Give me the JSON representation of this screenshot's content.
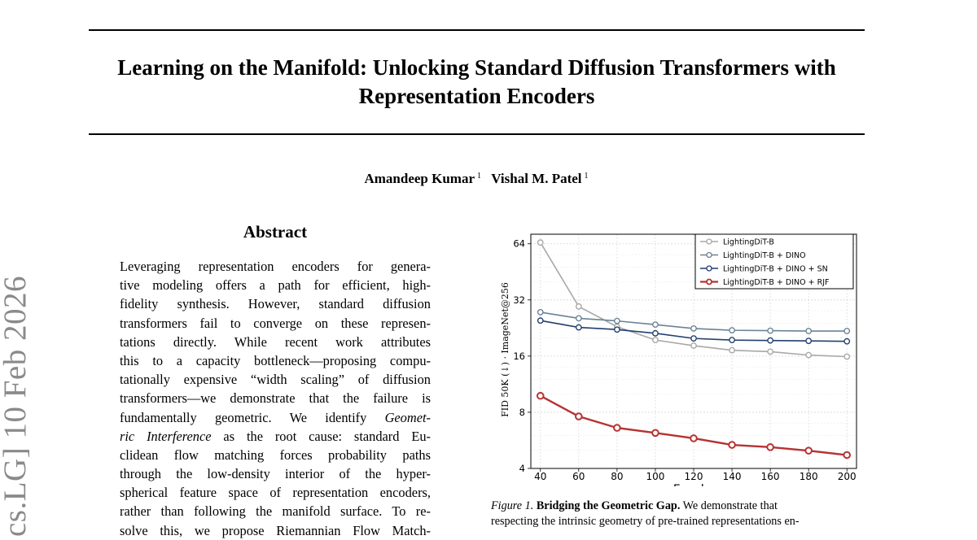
{
  "paper": {
    "title_lines": [
      "Learning on the Manifold: Unlocking Standard Diffusion Transformers with",
      "Representation Encoders"
    ],
    "authors": [
      {
        "name": "Amandeep Kumar",
        "affiliation": "1"
      },
      {
        "name": "Vishal M. Patel",
        "affiliation": "1"
      }
    ],
    "arxiv_stamp": "cs.LG]  10 Feb 2026"
  },
  "abstract": {
    "heading": "Abstract",
    "lines": [
      {
        "text": "Leveraging representation encoders for genera-"
      },
      {
        "text": "tive modeling offers a path for efficient, high-"
      },
      {
        "text": "fidelity synthesis.  However, standard diffusion"
      },
      {
        "text": "transformers fail to converge on these represen-"
      },
      {
        "text": "tations directly.  While recent work attributes"
      },
      {
        "text": "this to a capacity bottleneck—proposing compu-"
      },
      {
        "text": "tationally expensive “width scaling” of diffusion"
      },
      {
        "text": "transformers—we demonstrate that the failure is"
      },
      {
        "text": "fundamentally geometric.  We identify ",
        "em": "Geomet-"
      },
      {
        "em": "ric Interference",
        "text": " as the root cause:  standard Eu-"
      },
      {
        "text": "clidean flow matching forces probability paths"
      },
      {
        "text": "through the low-density interior of the hyper-"
      },
      {
        "text": "spherical feature space of representation encoders,"
      },
      {
        "text": "rather than following the manifold surface. To re-"
      },
      {
        "text": "solve this, we propose Riemannian Flow Match-"
      }
    ]
  },
  "figure": {
    "caption_label": "Figure 1.",
    "caption_title": "Bridging the Geometric Gap.",
    "caption_lines": [
      "We demonstrate that",
      "respecting the intrinsic geometry of pre-trained representations en-"
    ]
  },
  "chart_data": {
    "type": "line",
    "xlabel": "Epochs",
    "ylabel": "FID 50K (↓) · ImageNet@256",
    "x": [
      40,
      60,
      80,
      100,
      120,
      140,
      160,
      180,
      200
    ],
    "xlim": [
      35,
      205
    ],
    "ylim": [
      4,
      72
    ],
    "y_scale": "log2",
    "y_ticks": [
      4,
      8,
      16,
      32,
      64
    ],
    "grid": true,
    "legend_position": "top-right",
    "series": [
      {
        "name": "LightingDiT-B",
        "color": "#a8a8a8",
        "values": [
          65,
          29.5,
          23,
          19.5,
          18.2,
          17.2,
          16.9,
          16.2,
          15.9
        ]
      },
      {
        "name": "LightingDiT-B + DINO",
        "color": "#6b8294",
        "values": [
          27.5,
          25.5,
          24.7,
          23.6,
          22.5,
          22.0,
          21.9,
          21.8,
          21.8
        ]
      },
      {
        "name": "LightingDiT-B + DINO + SN",
        "color": "#223f6e",
        "values": [
          24.8,
          22.8,
          22.2,
          21.2,
          19.9,
          19.5,
          19.4,
          19.3,
          19.2
        ]
      },
      {
        "name": "LightingDiT-B + DINO + RJF",
        "color": "#b73232",
        "values": [
          9.8,
          7.6,
          6.6,
          6.2,
          5.8,
          5.35,
          5.2,
          4.98,
          4.72
        ]
      }
    ]
  }
}
